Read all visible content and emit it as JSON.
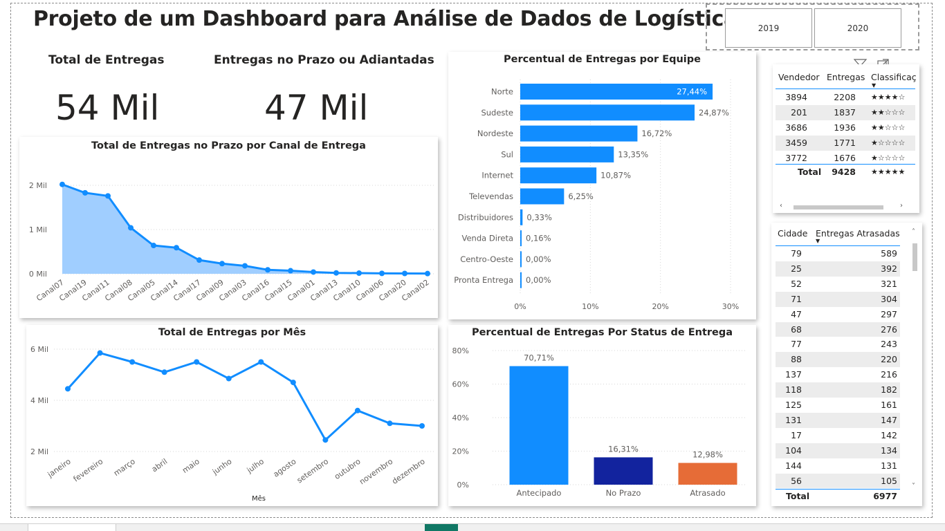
{
  "title": "Projeto de um Dashboard para Análise de Dados de Logística",
  "slicer": {
    "options": [
      "2019",
      "2020"
    ]
  },
  "cards": [
    {
      "label": "Total de Entregas",
      "value": "54 Mil"
    },
    {
      "label": "Entregas no Prazo ou Adiantadas",
      "value": "47 Mil"
    }
  ],
  "visual_header_icons": [
    "filter-icon",
    "focus-mode-icon",
    "more-options-icon"
  ],
  "colors": {
    "primary": "#118dff",
    "area_fill": "#a0ceff",
    "navy": "#12239e",
    "orange": "#e66c37"
  },
  "chart_data": [
    {
      "type": "area",
      "title": "Total de Entregas no Prazo por Canal de Entrega",
      "categories": [
        "Canal07",
        "Canal19",
        "Canal11",
        "Canal08",
        "Canal05",
        "Canal14",
        "Canal17",
        "Canal09",
        "Canal03",
        "Canal16",
        "Canal15",
        "Canal01",
        "Canal13",
        "Canal10",
        "Canal06",
        "Canal20",
        "Canal02"
      ],
      "values": [
        2020,
        1830,
        1760,
        1040,
        640,
        590,
        310,
        230,
        180,
        90,
        70,
        40,
        20,
        15,
        10,
        8,
        5
      ],
      "yticks": [
        "0 Mil",
        "1 Mil",
        "2 Mil"
      ],
      "ylim": [
        0,
        2000
      ]
    },
    {
      "type": "line",
      "title": "Total de Entregas por Mês",
      "categories": [
        "janeiro",
        "fevereiro",
        "março",
        "abril",
        "maio",
        "junho",
        "julho",
        "agosto",
        "setembro",
        "outubro",
        "novembro",
        "dezembro"
      ],
      "values": [
        4450,
        5850,
        5500,
        5100,
        5500,
        4850,
        5500,
        4700,
        2450,
        3600,
        3100,
        3000
      ],
      "yticks": [
        "2 Mil",
        "4 Mil",
        "6 Mil"
      ],
      "ylim": [
        2000,
        6000
      ],
      "xlabel": "Mês"
    },
    {
      "type": "bar",
      "orientation": "horizontal",
      "title": "Percentual de Entregas por Equipe",
      "categories": [
        "Norte",
        "Sudeste",
        "Nordeste",
        "Sul",
        "Internet",
        "Televendas",
        "Distribuidores",
        "Venda Direta",
        "Centro-Oeste",
        "Pronta Entrega"
      ],
      "values": [
        27.44,
        24.87,
        16.72,
        13.35,
        10.87,
        6.25,
        0.33,
        0.16,
        0.0,
        0.0
      ],
      "labels": [
        "27,44%",
        "24,87%",
        "16,72%",
        "13,35%",
        "10,87%",
        "6,25%",
        "0,33%",
        "0,16%",
        "0,00%",
        "0,00%"
      ],
      "xticks": [
        "0%",
        "10%",
        "20%",
        "30%"
      ],
      "xlim": [
        0,
        30
      ]
    },
    {
      "type": "bar",
      "title": "Percentual de Entregas Por Status de Entrega",
      "categories": [
        "Antecipado",
        "No Prazo",
        "Atrasado"
      ],
      "values": [
        70.71,
        16.31,
        12.98
      ],
      "labels": [
        "70,71%",
        "16,31%",
        "12,98%"
      ],
      "colors": [
        "#118dff",
        "#12239e",
        "#e66c37"
      ],
      "yticks": [
        "0%",
        "20%",
        "40%",
        "60%",
        "80%"
      ],
      "ylim": [
        0,
        80
      ]
    }
  ],
  "vendor_table": {
    "columns": [
      "Vendedor",
      "Entregas",
      "Classificaç"
    ],
    "rows": [
      {
        "vendedor": "3894",
        "entregas": "2208",
        "stars": "★★★★☆"
      },
      {
        "vendedor": "201",
        "entregas": "1837",
        "stars": "★★☆☆☆"
      },
      {
        "vendedor": "3686",
        "entregas": "1936",
        "stars": "★★☆☆☆"
      },
      {
        "vendedor": "3459",
        "entregas": "1771",
        "stars": "★☆☆☆☆"
      },
      {
        "vendedor": "3772",
        "entregas": "1676",
        "stars": "★☆☆☆☆"
      }
    ],
    "total": {
      "label": "Total",
      "entregas": "9428",
      "stars": "★★★★★"
    }
  },
  "city_table": {
    "columns": [
      "Cidade",
      "Entregas Atrasadas"
    ],
    "rows": [
      [
        "79",
        "589"
      ],
      [
        "25",
        "392"
      ],
      [
        "52",
        "321"
      ],
      [
        "71",
        "304"
      ],
      [
        "47",
        "297"
      ],
      [
        "68",
        "276"
      ],
      [
        "77",
        "243"
      ],
      [
        "88",
        "220"
      ],
      [
        "137",
        "216"
      ],
      [
        "118",
        "182"
      ],
      [
        "125",
        "161"
      ],
      [
        "131",
        "147"
      ],
      [
        "17",
        "142"
      ],
      [
        "104",
        "134"
      ],
      [
        "144",
        "131"
      ],
      [
        "56",
        "105"
      ]
    ],
    "total": {
      "label": "Total",
      "value": "6977"
    }
  }
}
